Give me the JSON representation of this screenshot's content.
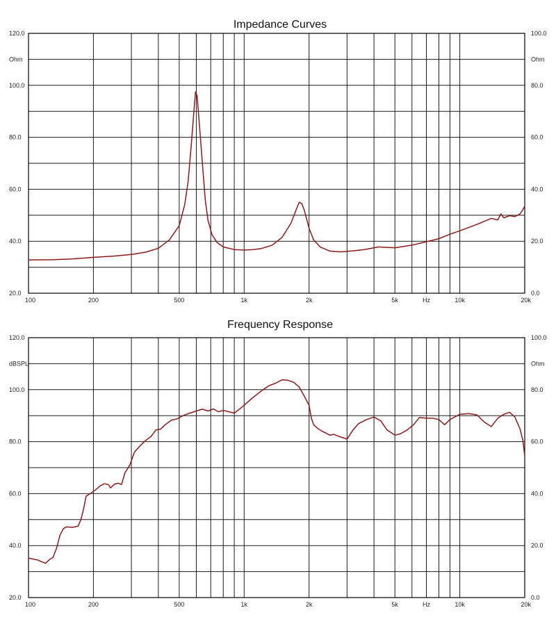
{
  "chart_data": [
    {
      "type": "line",
      "title": "Impedance Curves",
      "xscale": "log",
      "xlim": [
        100,
        20000
      ],
      "ylim_left": [
        20,
        120
      ],
      "ylim_right": [
        0,
        100
      ],
      "left_unit": "Ohm",
      "right_unit": "Ohm",
      "left_ticks": [
        "120.0",
        "100.0",
        "80.0",
        "60.0",
        "40.0",
        "20.0"
      ],
      "right_ticks": [
        "100.0",
        "80.0",
        "60.0",
        "40.0",
        "20.0",
        "0.0"
      ],
      "x_tick_labels": [
        {
          "x": 100,
          "label": "100"
        },
        {
          "x": 200,
          "label": "200"
        },
        {
          "x": 500,
          "label": "500"
        },
        {
          "x": 1000,
          "label": "1k"
        },
        {
          "x": 2000,
          "label": "2k"
        },
        {
          "x": 5000,
          "label": "5k"
        },
        {
          "x": 7000,
          "label": "Hz"
        },
        {
          "x": 10000,
          "label": "10k"
        },
        {
          "x": 20000,
          "label": "20k"
        }
      ],
      "grid": true,
      "series": [
        {
          "color": "#8b1a1a",
          "points": [
            [
              100,
              32.8
            ],
            [
              130,
              32.9
            ],
            [
              160,
              33.2
            ],
            [
              200,
              33.8
            ],
            [
              250,
              34.3
            ],
            [
              300,
              34.9
            ],
            [
              350,
              35.8
            ],
            [
              400,
              37.3
            ],
            [
              450,
              40.5
            ],
            [
              500,
              46
            ],
            [
              530,
              54
            ],
            [
              550,
              63
            ],
            [
              570,
              78
            ],
            [
              585,
              90
            ],
            [
              595,
              97.5
            ],
            [
              605,
              96
            ],
            [
              620,
              85
            ],
            [
              640,
              70
            ],
            [
              660,
              56
            ],
            [
              680,
              48
            ],
            [
              710,
              42.5
            ],
            [
              750,
              39.5
            ],
            [
              800,
              37.8
            ],
            [
              900,
              36.8
            ],
            [
              1000,
              36.6
            ],
            [
              1100,
              36.8
            ],
            [
              1200,
              37.2
            ],
            [
              1350,
              38.5
            ],
            [
              1500,
              41.5
            ],
            [
              1650,
              47
            ],
            [
              1750,
              52.5
            ],
            [
              1800,
              55
            ],
            [
              1850,
              54.5
            ],
            [
              1900,
              52
            ],
            [
              2000,
              45
            ],
            [
              2100,
              40.5
            ],
            [
              2250,
              37.8
            ],
            [
              2500,
              36.2
            ],
            [
              2800,
              35.9
            ],
            [
              3200,
              36.3
            ],
            [
              3600,
              36.8
            ],
            [
              4200,
              37.8
            ],
            [
              5000,
              37.5
            ],
            [
              6000,
              38.5
            ],
            [
              7000,
              39.8
            ],
            [
              8000,
              41
            ],
            [
              9000,
              42.7
            ],
            [
              10000,
              44
            ],
            [
              12000,
              46.5
            ],
            [
              14000,
              48.8
            ],
            [
              15000,
              48.2
            ],
            [
              15500,
              50.5
            ],
            [
              16000,
              49
            ],
            [
              17000,
              49.8
            ],
            [
              18000,
              49.5
            ],
            [
              19000,
              50.5
            ],
            [
              19500,
              51.8
            ],
            [
              20000,
              53.5
            ]
          ]
        }
      ]
    },
    {
      "type": "line",
      "title": "Frequency Response",
      "xscale": "log",
      "xlim": [
        100,
        20000
      ],
      "ylim_left": [
        20,
        120
      ],
      "ylim_right": [
        0,
        100
      ],
      "left_unit": "dBSPL",
      "right_unit": "Ohm",
      "left_ticks": [
        "120.0",
        "100.0",
        "80.0",
        "60.0",
        "40.0",
        "20.0"
      ],
      "right_ticks": [
        "100.0",
        "80.0",
        "60.0",
        "40.0",
        "20.0",
        "0.0"
      ],
      "x_tick_labels": [
        {
          "x": 100,
          "label": "100"
        },
        {
          "x": 200,
          "label": "200"
        },
        {
          "x": 500,
          "label": "500"
        },
        {
          "x": 1000,
          "label": "1k"
        },
        {
          "x": 2000,
          "label": "2k"
        },
        {
          "x": 5000,
          "label": "5k"
        },
        {
          "x": 7000,
          "label": "Hz"
        },
        {
          "x": 10000,
          "label": "10k"
        },
        {
          "x": 20000,
          "label": "20k"
        }
      ],
      "grid": true,
      "series": [
        {
          "color": "#8b1a1a",
          "points": [
            [
              100,
              35.2
            ],
            [
              105,
              34.8
            ],
            [
              110,
              34.5
            ],
            [
              115,
              33.8
            ],
            [
              120,
              33.2
            ],
            [
              125,
              34.6
            ],
            [
              130,
              35.5
            ],
            [
              135,
              39
            ],
            [
              140,
              44
            ],
            [
              145,
              46.5
            ],
            [
              150,
              47.2
            ],
            [
              160,
              47
            ],
            [
              170,
              47.5
            ],
            [
              175,
              50
            ],
            [
              180,
              54
            ],
            [
              185,
              59
            ],
            [
              195,
              60.2
            ],
            [
              205,
              61.5
            ],
            [
              215,
              63
            ],
            [
              225,
              63.8
            ],
            [
              235,
              63.5
            ],
            [
              240,
              62.2
            ],
            [
              250,
              63.6
            ],
            [
              260,
              64
            ],
            [
              270,
              63.5
            ],
            [
              280,
              68
            ],
            [
              295,
              71
            ],
            [
              310,
              76
            ],
            [
              330,
              78.5
            ],
            [
              350,
              80.5
            ],
            [
              370,
              82
            ],
            [
              390,
              84.5
            ],
            [
              410,
              84.8
            ],
            [
              430,
              86.5
            ],
            [
              460,
              88.3
            ],
            [
              490,
              88.8
            ],
            [
              520,
              90
            ],
            [
              560,
              91
            ],
            [
              600,
              91.8
            ],
            [
              640,
              92.5
            ],
            [
              680,
              91.8
            ],
            [
              720,
              92.6
            ],
            [
              760,
              91.5
            ],
            [
              800,
              92
            ],
            [
              850,
              91.5
            ],
            [
              900,
              91
            ],
            [
              950,
              92.5
            ],
            [
              1000,
              94
            ],
            [
              1100,
              97
            ],
            [
              1200,
              99.5
            ],
            [
              1300,
              101.5
            ],
            [
              1400,
              102.5
            ],
            [
              1500,
              103.8
            ],
            [
              1600,
              103.6
            ],
            [
              1700,
              102.8
            ],
            [
              1800,
              101
            ],
            [
              1900,
              97.5
            ],
            [
              2000,
              94
            ],
            [
              2050,
              89
            ],
            [
              2100,
              86.5
            ],
            [
              2200,
              85
            ],
            [
              2300,
              84
            ],
            [
              2500,
              82.5
            ],
            [
              2600,
              82.8
            ],
            [
              2800,
              81.8
            ],
            [
              3000,
              81
            ],
            [
              3200,
              84.5
            ],
            [
              3400,
              87
            ],
            [
              3700,
              88.5
            ],
            [
              4000,
              89.5
            ],
            [
              4300,
              88
            ],
            [
              4600,
              84.5
            ],
            [
              5000,
              82.5
            ],
            [
              5300,
              83
            ],
            [
              5700,
              84.5
            ],
            [
              6100,
              86.5
            ],
            [
              6500,
              89.3
            ],
            [
              7000,
              89
            ],
            [
              7500,
              89
            ],
            [
              8000,
              88.5
            ],
            [
              8500,
              86.5
            ],
            [
              9000,
              88.5
            ],
            [
              10000,
              90.5
            ],
            [
              11000,
              90.8
            ],
            [
              12000,
              90.3
            ],
            [
              13000,
              87.5
            ],
            [
              14000,
              85.8
            ],
            [
              15000,
              89
            ],
            [
              16000,
              90.5
            ],
            [
              17000,
              91.3
            ],
            [
              18000,
              89.5
            ],
            [
              19000,
              85
            ],
            [
              19600,
              80.5
            ],
            [
              20000,
              74.5
            ]
          ]
        }
      ]
    }
  ]
}
